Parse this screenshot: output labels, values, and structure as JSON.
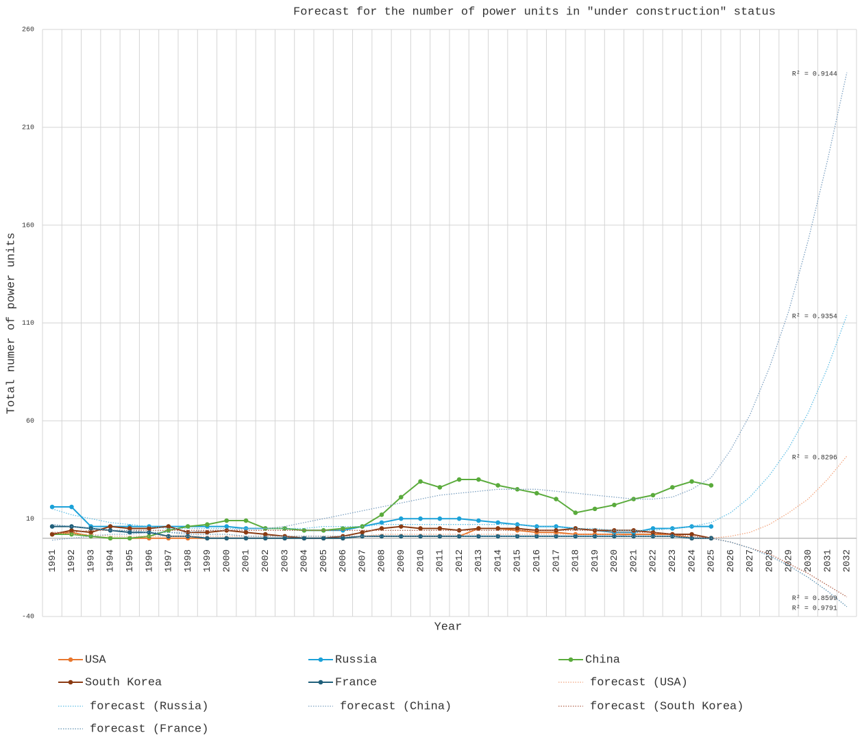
{
  "chart_data": {
    "type": "line",
    "title": "Forecast for the number of power units in \"under construction\" status",
    "x_label": "Year",
    "y_label": "Total numer of power units",
    "categories": [
      "1991",
      "1992",
      "1993",
      "1994",
      "1995",
      "1996",
      "1997",
      "1998",
      "1999",
      "2000",
      "2001",
      "2002",
      "2003",
      "2004",
      "2005",
      "2006",
      "2007",
      "2008",
      "2009",
      "2010",
      "2011",
      "2012",
      "2013",
      "2014",
      "2015",
      "2016",
      "2017",
      "2018",
      "2019",
      "2020",
      "2021",
      "2022",
      "2023",
      "2024",
      "2025",
      "2026",
      "2027",
      "2028",
      "2029",
      "2030",
      "2031",
      "2032"
    ],
    "ylim": [
      -40,
      260
    ],
    "yticks": [
      -40,
      10,
      60,
      110,
      160,
      210,
      260
    ],
    "grid": true,
    "series": [
      {
        "name": "USA",
        "color": "#e8772e",
        "markers": true,
        "values": [
          2,
          3,
          1,
          0,
          0,
          0,
          0,
          0,
          0,
          0,
          0,
          0,
          0,
          0,
          0,
          0,
          1,
          1,
          1,
          1,
          1,
          1,
          5,
          5,
          4,
          3,
          3,
          2,
          2,
          2,
          2,
          2,
          2,
          0,
          0,
          null,
          null,
          null,
          null,
          null,
          null,
          null
        ]
      },
      {
        "name": "Russia",
        "color": "#1ba1d8",
        "markers": true,
        "values": [
          16,
          16,
          6,
          6,
          6,
          6,
          6,
          6,
          6,
          6,
          5,
          5,
          5,
          4,
          4,
          4,
          6,
          8,
          10,
          10,
          10,
          10,
          9,
          8,
          7,
          6,
          6,
          5,
          4,
          3,
          3,
          5,
          5,
          6,
          6,
          null,
          null,
          null,
          null,
          null,
          null,
          null
        ]
      },
      {
        "name": "China",
        "color": "#5aab3c",
        "markers": true,
        "values": [
          2,
          2,
          1,
          0,
          0,
          1,
          4,
          6,
          7,
          9,
          9,
          5,
          5,
          4,
          4,
          5,
          6,
          12,
          21,
          29,
          26,
          30,
          30,
          27,
          25,
          23,
          20,
          13,
          15,
          17,
          20,
          22,
          26,
          29,
          27,
          null,
          null,
          null,
          null,
          null,
          null,
          null
        ]
      },
      {
        "name": "South Korea",
        "color": "#8b3a12",
        "markers": true,
        "values": [
          2,
          4,
          3,
          6,
          5,
          5,
          6,
          3,
          3,
          4,
          3,
          2,
          1,
          0,
          0,
          1,
          3,
          5,
          6,
          5,
          5,
          4,
          5,
          5,
          5,
          4,
          4,
          5,
          4,
          4,
          4,
          3,
          2,
          2,
          0,
          null,
          null,
          null,
          null,
          null,
          null,
          null
        ]
      },
      {
        "name": "France",
        "color": "#1f5f7a",
        "markers": true,
        "values": [
          6,
          6,
          5,
          4,
          3,
          3,
          1,
          1,
          0,
          0,
          0,
          0,
          0,
          0,
          0,
          0,
          1,
          1,
          1,
          1,
          1,
          1,
          1,
          1,
          1,
          1,
          1,
          1,
          1,
          1,
          1,
          1,
          1,
          0,
          0,
          null,
          null,
          null,
          null,
          null,
          null,
          null
        ]
      },
      {
        "name": "forecast (USA)",
        "color": "#f2a27a",
        "line_style": "dotted",
        "annotation": "R² = 0.8296",
        "values": [
          3,
          2,
          2,
          1,
          1,
          1,
          1,
          1,
          1,
          1,
          1,
          1,
          1,
          1,
          1,
          1,
          1,
          2,
          2,
          2,
          2,
          2,
          2,
          2,
          2,
          2,
          2,
          2,
          2,
          2,
          1,
          1,
          1,
          1,
          0,
          1,
          3,
          7,
          13,
          20,
          30,
          42
        ]
      },
      {
        "name": "forecast (Russia)",
        "color": "#5bbce4",
        "line_style": "dotted",
        "annotation": "R² = 0.9354",
        "values": [
          15,
          12,
          10,
          8,
          7,
          6,
          5,
          5,
          5,
          5,
          5,
          5,
          5,
          5,
          6,
          6,
          6,
          7,
          7,
          7,
          7,
          7,
          7,
          7,
          7,
          6,
          6,
          5,
          5,
          4,
          4,
          4,
          5,
          6,
          8,
          13,
          21,
          32,
          46,
          64,
          87,
          114
        ]
      },
      {
        "name": "forecast (China)",
        "color": "#7a9fc0",
        "line_style": "dotted",
        "annotation": "R² = 0.9144",
        "values": [
          -1,
          0,
          1,
          2,
          2,
          3,
          3,
          3,
          4,
          4,
          5,
          5,
          6,
          8,
          10,
          12,
          14,
          16,
          18,
          20,
          22,
          23,
          24,
          25,
          25,
          25,
          24,
          23,
          22,
          21,
          20,
          20,
          21,
          25,
          31,
          45,
          63,
          87,
          116,
          152,
          193,
          238
        ]
      },
      {
        "name": "forecast (South Korea)",
        "color": "#b0614a",
        "line_style": "dotted",
        "annotation": "R² = 0.8599",
        "values": [
          3,
          3,
          4,
          4,
          4,
          4,
          4,
          4,
          4,
          4,
          4,
          4,
          4,
          4,
          4,
          4,
          4,
          4,
          4,
          4,
          4,
          4,
          4,
          4,
          4,
          4,
          4,
          4,
          4,
          3,
          3,
          3,
          2,
          1,
          0,
          -2,
          -5,
          -8,
          -13,
          -18,
          -24,
          -30
        ]
      },
      {
        "name": "forecast (France)",
        "color": "#5b8fb0",
        "line_style": "dotted",
        "annotation": "R² = 0.9791",
        "values": [
          7,
          6,
          5,
          4,
          4,
          3,
          3,
          2,
          2,
          2,
          1,
          1,
          1,
          1,
          1,
          1,
          1,
          1,
          1,
          1,
          1,
          1,
          1,
          1,
          1,
          1,
          1,
          1,
          1,
          1,
          1,
          1,
          1,
          0,
          0,
          -2,
          -5,
          -9,
          -14,
          -20,
          -27,
          -35
        ]
      }
    ]
  }
}
